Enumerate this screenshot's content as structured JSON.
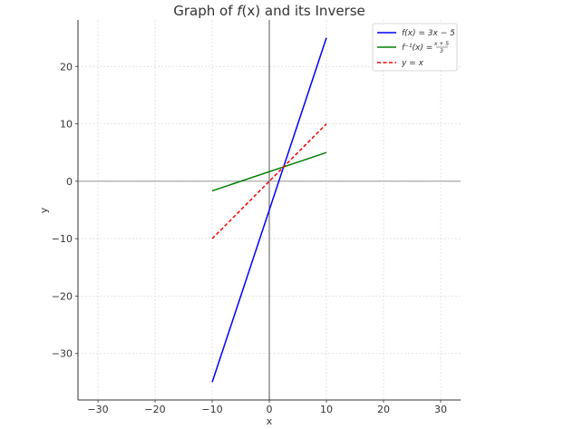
{
  "chart_data": {
    "type": "line",
    "title": "Graph of f(x) and its Inverse",
    "title_parts": {
      "prefix": "Graph of ",
      "func": "f",
      "arg": "(x)",
      "suffix": " and its Inverse"
    },
    "xlabel": "x",
    "ylabel": "y",
    "xlim": [
      -33.5,
      33.5
    ],
    "ylim": [
      -38.1,
      28.1
    ],
    "xticks": [
      -30,
      -20,
      -10,
      0,
      10,
      20,
      30
    ],
    "yticks": [
      -30,
      -20,
      -10,
      0,
      10,
      20
    ],
    "xtick_labels": [
      "−30",
      "−20",
      "−10",
      "0",
      "10",
      "20",
      "30"
    ],
    "ytick_labels": [
      "−30",
      "−20",
      "−10",
      "0",
      "10",
      "20"
    ],
    "grid": true,
    "aspect": "equal",
    "legend_position": "upper right",
    "series": [
      {
        "name": "f(x) = 3x − 5",
        "color": "#0000ff",
        "style": "solid",
        "x": [
          -10,
          10
        ],
        "y": [
          -35,
          25
        ]
      },
      {
        "name": "f⁻¹(x) = (x+5)/3",
        "color": "#008000",
        "style": "solid",
        "x": [
          -10,
          10
        ],
        "y": [
          -1.667,
          5
        ]
      },
      {
        "name": "y = x",
        "color": "#ff0000",
        "style": "dashed",
        "x": [
          -10,
          10
        ],
        "y": [
          -10,
          10
        ]
      }
    ],
    "reference_lines": {
      "axhline_y": 0,
      "axvline_x": 0
    }
  },
  "legend": {
    "f_label": {
      "lhs": "f(x) = 3x − 5"
    },
    "finv_label": {
      "lhs": "f⁻¹(x) = ",
      "num": "x + 5",
      "den": "3"
    },
    "yx_label": {
      "lhs": "y = x"
    }
  }
}
